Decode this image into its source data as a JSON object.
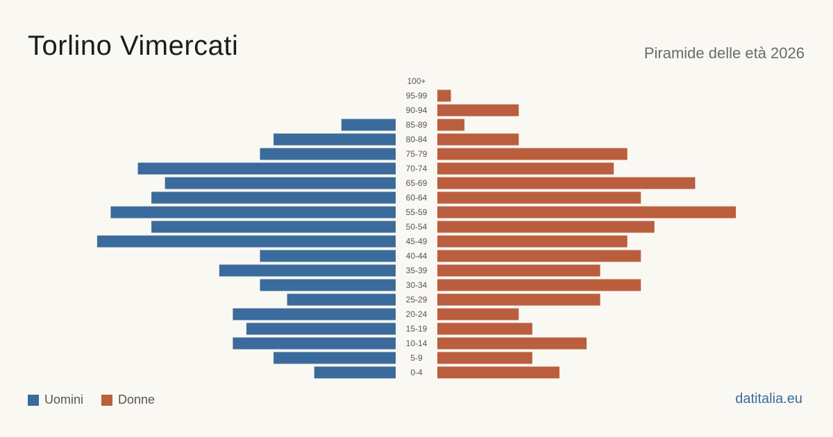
{
  "header": {
    "title": "Torlino Vimercati",
    "subtitle": "Piramide delle età 2026"
  },
  "legend": {
    "men_label": "Uomini",
    "women_label": "Donne"
  },
  "brand": "datitalia.eu",
  "colors": {
    "men": "#3b6b9c",
    "women": "#bb5e3e",
    "background": "#faf8f3"
  },
  "chart_data": {
    "type": "bar",
    "orientation": "horizontal-pyramid",
    "categories": [
      "100+",
      "95-99",
      "90-94",
      "85-89",
      "80-84",
      "75-79",
      "70-74",
      "65-69",
      "60-64",
      "55-59",
      "50-54",
      "45-49",
      "40-44",
      "35-39",
      "30-34",
      "25-29",
      "20-24",
      "15-19",
      "10-14",
      "5-9",
      "0-4"
    ],
    "series": [
      {
        "name": "Uomini",
        "values": [
          0,
          0,
          0,
          4,
          9,
          10,
          19,
          17,
          18,
          21,
          18,
          22,
          10,
          13,
          10,
          8,
          12,
          11,
          12,
          9,
          6
        ]
      },
      {
        "name": "Donne",
        "values": [
          0,
          1,
          6,
          2,
          6,
          14,
          13,
          19,
          15,
          22,
          16,
          14,
          15,
          12,
          15,
          12,
          6,
          7,
          11,
          7,
          9
        ]
      }
    ],
    "legend_position": "bottom-left",
    "grid": false
  }
}
